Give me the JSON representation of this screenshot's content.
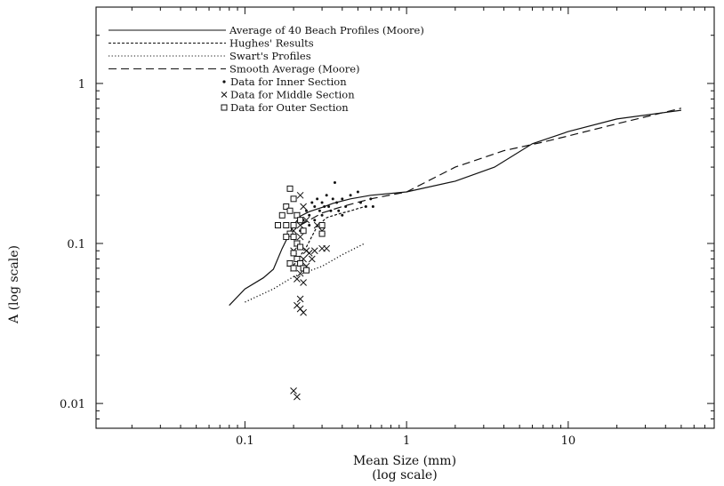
{
  "chart_data": {
    "type": "scatter",
    "title": "",
    "xlabel": "Mean Size (mm)",
    "xlabel_sub": "(log scale)",
    "ylabel": "A (log scale)",
    "x_scale": "log",
    "y_scale": "log",
    "xlim": [
      0.012,
      80
    ],
    "ylim": [
      0.007,
      3
    ],
    "grid": false,
    "legend_position": "top-left",
    "x_ticks": [
      {
        "value": 0.1,
        "label": "0.1"
      },
      {
        "value": 1,
        "label": "1"
      },
      {
        "value": 10,
        "label": "10"
      }
    ],
    "y_ticks": [
      {
        "value": 0.01,
        "label": "0.01"
      },
      {
        "value": 0.1,
        "label": "0.1"
      },
      {
        "value": 1,
        "label": "1"
      }
    ],
    "series": [
      {
        "name": "Average of 40 Beach Profiles (Moore)",
        "style": "solid",
        "points": [
          [
            0.08,
            0.041
          ],
          [
            0.1,
            0.052
          ],
          [
            0.13,
            0.061
          ],
          [
            0.15,
            0.069
          ],
          [
            0.17,
            0.093
          ],
          [
            0.2,
            0.13
          ],
          [
            0.22,
            0.148
          ],
          [
            0.25,
            0.158
          ],
          [
            0.3,
            0.168
          ],
          [
            0.35,
            0.178
          ],
          [
            0.45,
            0.19
          ],
          [
            0.6,
            0.2
          ],
          [
            1.0,
            0.21
          ],
          [
            2.0,
            0.245
          ],
          [
            3.5,
            0.3
          ],
          [
            6.0,
            0.42
          ],
          [
            10,
            0.5
          ],
          [
            20,
            0.6
          ],
          [
            50,
            0.68
          ]
        ]
      },
      {
        "name": "Hughes' Results",
        "style": "dashed",
        "points": [
          [
            0.2,
            0.073
          ],
          [
            0.24,
            0.095
          ],
          [
            0.28,
            0.128
          ],
          [
            0.32,
            0.145
          ],
          [
            0.38,
            0.153
          ],
          [
            0.45,
            0.16
          ],
          [
            0.55,
            0.17
          ]
        ]
      },
      {
        "name": "Swart's Profiles",
        "style": "dotted",
        "points": [
          [
            0.1,
            0.043
          ],
          [
            0.15,
            0.052
          ],
          [
            0.2,
            0.062
          ],
          [
            0.3,
            0.072
          ],
          [
            0.4,
            0.085
          ],
          [
            0.55,
            0.1
          ]
        ]
      },
      {
        "name": "Smooth Average (Moore)",
        "style": "longdash",
        "points": [
          [
            0.22,
            0.13
          ],
          [
            0.3,
            0.155
          ],
          [
            0.4,
            0.17
          ],
          [
            0.6,
            0.19
          ],
          [
            1.0,
            0.21
          ],
          [
            2.0,
            0.3
          ],
          [
            4.0,
            0.38
          ],
          [
            7.0,
            0.43
          ],
          [
            10,
            0.47
          ],
          [
            20,
            0.56
          ],
          [
            50,
            0.7
          ]
        ]
      },
      {
        "name": "Data for Inner Section",
        "marker": "dot",
        "points": [
          [
            0.22,
            0.12
          ],
          [
            0.23,
            0.14
          ],
          [
            0.24,
            0.16
          ],
          [
            0.25,
            0.15
          ],
          [
            0.26,
            0.18
          ],
          [
            0.27,
            0.17
          ],
          [
            0.28,
            0.19
          ],
          [
            0.29,
            0.16
          ],
          [
            0.3,
            0.18
          ],
          [
            0.31,
            0.17
          ],
          [
            0.32,
            0.2
          ],
          [
            0.33,
            0.17
          ],
          [
            0.35,
            0.19
          ],
          [
            0.36,
            0.24
          ],
          [
            0.37,
            0.18
          ],
          [
            0.38,
            0.16
          ],
          [
            0.4,
            0.19
          ],
          [
            0.42,
            0.17
          ],
          [
            0.45,
            0.2
          ],
          [
            0.5,
            0.21
          ],
          [
            0.52,
            0.18
          ],
          [
            0.56,
            0.17
          ],
          [
            0.6,
            0.19
          ],
          [
            0.62,
            0.17
          ],
          [
            0.27,
            0.14
          ],
          [
            0.3,
            0.15
          ],
          [
            0.34,
            0.16
          ],
          [
            0.4,
            0.15
          ],
          [
            0.25,
            0.13
          ]
        ]
      },
      {
        "name": "Data for Middle Section",
        "marker": "x",
        "points": [
          [
            0.2,
            0.012
          ],
          [
            0.21,
            0.011
          ],
          [
            0.21,
            0.041
          ],
          [
            0.22,
            0.045
          ],
          [
            0.22,
            0.039
          ],
          [
            0.23,
            0.037
          ],
          [
            0.21,
            0.06
          ],
          [
            0.22,
            0.065
          ],
          [
            0.23,
            0.057
          ],
          [
            0.22,
            0.2
          ],
          [
            0.23,
            0.17
          ],
          [
            0.2,
            0.12
          ],
          [
            0.21,
            0.15
          ],
          [
            0.22,
            0.13
          ],
          [
            0.24,
            0.14
          ],
          [
            0.2,
            0.09
          ],
          [
            0.21,
            0.1
          ],
          [
            0.22,
            0.11
          ],
          [
            0.23,
            0.08
          ],
          [
            0.24,
            0.09
          ],
          [
            0.25,
            0.087
          ],
          [
            0.26,
            0.08
          ],
          [
            0.27,
            0.09
          ],
          [
            0.28,
            0.13
          ],
          [
            0.3,
            0.12
          ],
          [
            0.3,
            0.093
          ],
          [
            0.32,
            0.093
          ],
          [
            0.19,
            0.075
          ],
          [
            0.2,
            0.07
          ],
          [
            0.24,
            0.072
          ]
        ]
      },
      {
        "name": "Data for Outer Section",
        "marker": "square",
        "points": [
          [
            0.19,
            0.22
          ],
          [
            0.2,
            0.19
          ],
          [
            0.18,
            0.17
          ],
          [
            0.19,
            0.16
          ],
          [
            0.21,
            0.15
          ],
          [
            0.17,
            0.15
          ],
          [
            0.18,
            0.13
          ],
          [
            0.2,
            0.13
          ],
          [
            0.22,
            0.14
          ],
          [
            0.23,
            0.12
          ],
          [
            0.19,
            0.115
          ],
          [
            0.2,
            0.11
          ],
          [
            0.21,
            0.1
          ],
          [
            0.22,
            0.095
          ],
          [
            0.18,
            0.11
          ],
          [
            0.2,
            0.087
          ],
          [
            0.21,
            0.08
          ],
          [
            0.19,
            0.075
          ],
          [
            0.22,
            0.075
          ],
          [
            0.23,
            0.07
          ],
          [
            0.24,
            0.068
          ],
          [
            0.2,
            0.07
          ],
          [
            0.3,
            0.13
          ],
          [
            0.3,
            0.115
          ],
          [
            0.16,
            0.13
          ]
        ]
      }
    ]
  }
}
